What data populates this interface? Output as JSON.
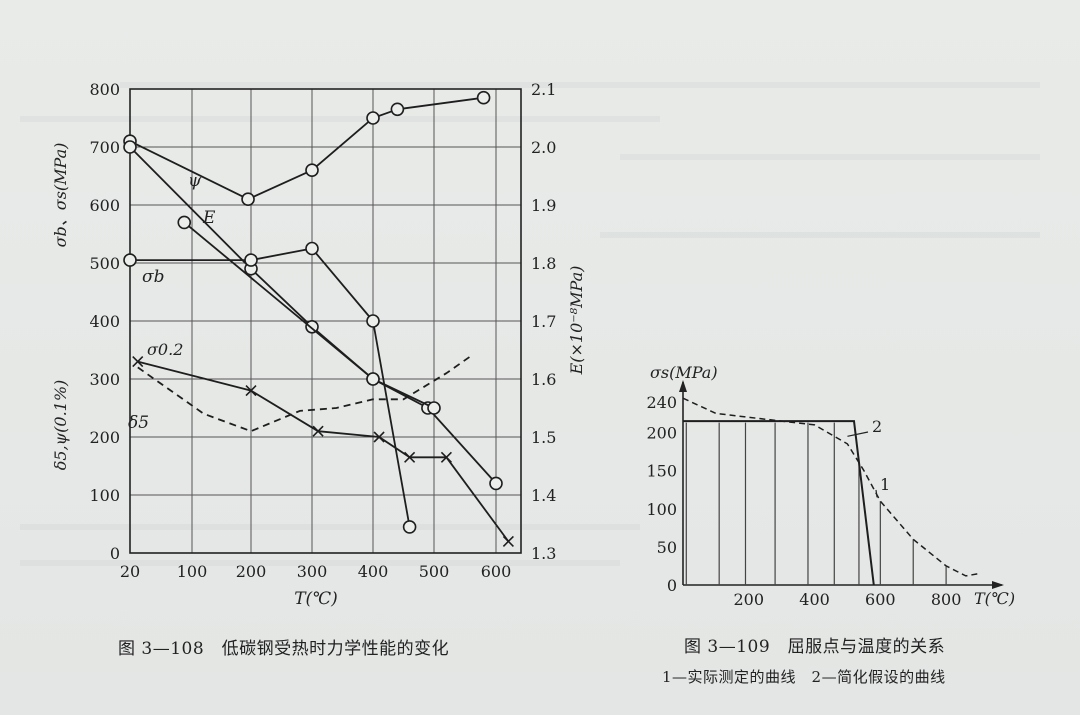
{
  "figure1": {
    "caption": "图 3—108　低碳钢受热时力学性能的变化",
    "x_axis_label": "T(℃)",
    "left_axis_label_top": "σb、σs(MPa)",
    "left_axis_label_bottom": "δ5,ψ(0.1%)",
    "right_axis_label": "E(×10⁻⁸MPa)",
    "x_ticks": [
      "20",
      "100",
      "200",
      "300",
      "400",
      "500",
      "600"
    ],
    "left_ticks": [
      "0",
      "100",
      "200",
      "300",
      "400",
      "500",
      "600",
      "700",
      "800"
    ],
    "right_ticks": [
      "1.3",
      "1.4",
      "1.5",
      "1.6",
      "1.7",
      "1.8",
      "1.9",
      "2.0",
      "2.1"
    ],
    "curve_labels": {
      "psi": "ψ",
      "E": "E",
      "sigma_b": "σb",
      "sigma_02": "σ0.2",
      "delta5": "δ5"
    }
  },
  "figure2": {
    "caption": "图 3—109　屈服点与温度的关系",
    "note": "1—实际测定的曲线　2—简化假设的曲线",
    "y_axis_label": "σs(MPa)",
    "x_axis_label": "T(℃)",
    "x_ticks": [
      "200",
      "400",
      "600",
      "800"
    ],
    "y_ticks": [
      "0",
      "50",
      "100",
      "150",
      "200",
      "240"
    ],
    "curve_labels": {
      "c1": "1",
      "c2": "2"
    }
  },
  "chart_data": [
    {
      "type": "line",
      "title": "低碳钢受热时力学性能的变化",
      "xlabel": "T(℃)",
      "ylabel": "σb、σs(MPa) / δ5,ψ(0.1%)",
      "y2label": "E(×10⁻⁸MPa)",
      "xlim": [
        20,
        640
      ],
      "ylim": [
        0,
        800
      ],
      "y2lim": [
        1.3,
        2.1
      ],
      "grid": true,
      "series": [
        {
          "name": "ψ",
          "axis": "left",
          "style": "solid",
          "marker": "circle",
          "x": [
            20,
            195,
            300,
            400,
            440,
            580
          ],
          "y": [
            710,
            610,
            660,
            750,
            765,
            785
          ]
        },
        {
          "name": "E",
          "axis": "right",
          "style": "solid",
          "marker": "circle",
          "x": [
            20,
            200,
            300,
            400,
            490,
            600
          ],
          "y": [
            2.0,
            1.79,
            1.69,
            1.6,
            1.55,
            1.42
          ]
        },
        {
          "name": "σb",
          "axis": "left",
          "style": "solid",
          "marker": "circle",
          "x": [
            20,
            200,
            300,
            400,
            460
          ],
          "y": [
            505,
            505,
            525,
            400,
            45
          ]
        },
        {
          "name": "σ0.2",
          "axis": "left",
          "style": "solid",
          "marker": "cross",
          "x": [
            30,
            200,
            310,
            410,
            460,
            520,
            620
          ],
          "y": [
            330,
            280,
            210,
            200,
            165,
            165,
            20
          ]
        },
        {
          "name": "δ5",
          "axis": "left",
          "style": "dashed",
          "marker": "none",
          "x": [
            30,
            120,
            200,
            280,
            340,
            400,
            450,
            520,
            560
          ],
          "y": [
            320,
            240,
            210,
            245,
            250,
            265,
            265,
            310,
            340
          ]
        },
        {
          "name": "",
          "axis": "left",
          "style": "solid",
          "marker": "circle",
          "x": [
            90,
            400,
            500
          ],
          "y": [
            570,
            300,
            250
          ]
        }
      ]
    },
    {
      "type": "line",
      "title": "屈服点与温度的关系",
      "xlabel": "T(℃)",
      "ylabel": "σs(MPa)",
      "xlim": [
        0,
        900
      ],
      "ylim": [
        0,
        240
      ],
      "series": [
        {
          "name": "1",
          "style": "dashed",
          "x": [
            0,
            100,
            200,
            300,
            400,
            500,
            550,
            600,
            700,
            800,
            860,
            900
          ],
          "y": [
            245,
            225,
            220,
            215,
            210,
            185,
            150,
            110,
            60,
            25,
            12,
            15
          ]
        },
        {
          "name": "2",
          "style": "solid",
          "x": [
            0,
            480,
            520,
            580
          ],
          "y": [
            215,
            215,
            215,
            0
          ]
        }
      ]
    }
  ]
}
